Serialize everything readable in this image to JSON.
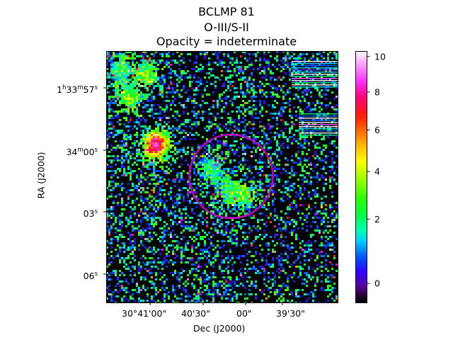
{
  "chart_data": {
    "type": "heatmap",
    "title": [
      "BCLMP 81",
      "O-III/S-II",
      "Opacity = indeterminate"
    ],
    "xlabel": "Dec (J2000)",
    "ylabel": "RA (J2000)",
    "x_ticks": [
      "30°41'00\"",
      "40'30\"",
      "00\"",
      "39'30\""
    ],
    "y_ticks": [
      {
        "base": "1",
        "parts": [
          [
            "h",
            true
          ],
          [
            "33",
            false
          ],
          [
            "m",
            true
          ],
          [
            "57",
            false
          ],
          [
            "s",
            true
          ]
        ]
      },
      {
        "base": "34",
        "parts": [
          [
            "m",
            true
          ],
          [
            "00",
            false
          ],
          [
            "s",
            true
          ]
        ]
      },
      {
        "base": "03",
        "parts": [
          [
            "s",
            true
          ]
        ]
      },
      {
        "base": "06",
        "parts": [
          [
            "s",
            true
          ]
        ]
      }
    ],
    "colorbar": {
      "colormap": "gist_ncar-like",
      "range": [
        -0.3,
        10.3
      ],
      "ticks": [
        0,
        2,
        4,
        6,
        8,
        10
      ],
      "tick_labels": [
        "0",
        "2",
        "4",
        "6",
        "8",
        "10"
      ]
    },
    "region": {
      "shape": "circle",
      "color": "#cc00cc"
    },
    "blobs": [
      {
        "ra_frac": 0.09,
        "dec_frac": 0.17,
        "value": 1.8
      },
      {
        "ra_frac": 0.36,
        "dec_frac": 0.22,
        "value": 4.0
      },
      {
        "ra_frac": 0.38,
        "dec_frac": 0.2,
        "value": 3.2
      },
      {
        "ra_frac": 0.07,
        "dec_frac": 0.06,
        "value": 1.2
      },
      {
        "ra_frac": 0.18,
        "dec_frac": 0.09,
        "value": 2.0
      },
      {
        "ra_frac": 0.55,
        "dec_frac": 0.53,
        "value": 1.0
      },
      {
        "ra_frac": 0.57,
        "dec_frac": 0.6,
        "value": 1.3
      },
      {
        "ra_frac": 0.47,
        "dec_frac": 0.45,
        "value": 0.9
      }
    ]
  }
}
